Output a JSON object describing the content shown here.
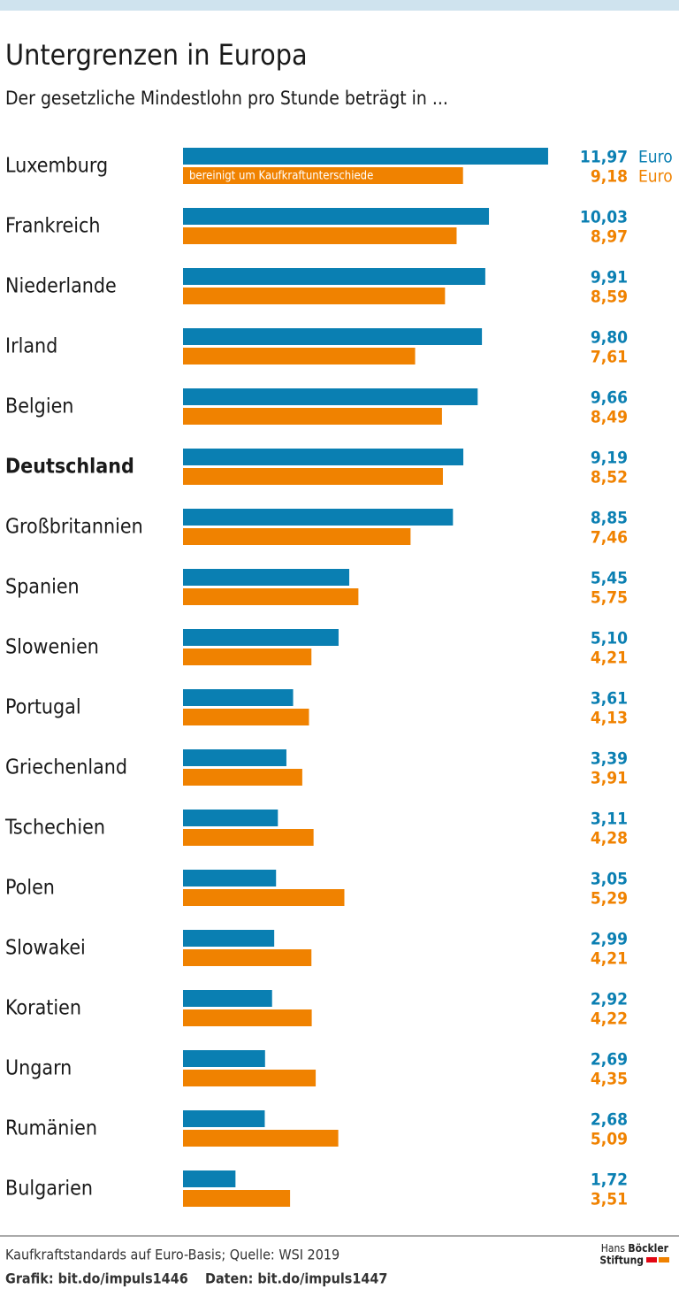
{
  "chart_data": {
    "type": "grouped-hbar",
    "title": "Untergrenzen in Europa",
    "subtitle": "Der gesetzliche Mindestlohn pro Stunde beträgt in ...",
    "categories": [
      "Luxemburg",
      "Frankreich",
      "Niederlande",
      "Irland",
      "Belgien",
      "Deutschland",
      "Großbritannien",
      "Spanien",
      "Slowenien",
      "Portugal",
      "Griechenland",
      "Tschechien",
      "Polen",
      "Slowakei",
      "Koratien",
      "Ungarn",
      "Rumänien",
      "Bulgarien"
    ],
    "highlight_index": 5,
    "xlim": [
      0,
      12
    ],
    "series": [
      {
        "color": "#0a7fb2",
        "unit": "Euro",
        "values": [
          11.97,
          10.03,
          9.91,
          9.8,
          9.66,
          9.19,
          8.85,
          5.45,
          5.1,
          3.61,
          3.39,
          3.11,
          3.05,
          2.99,
          2.92,
          2.69,
          2.68,
          1.72
        ],
        "value_labels": [
          "11,97",
          "10,03",
          "9,91",
          "9,80",
          "9,66",
          "9,19",
          "8,85",
          "5,45",
          "5,10",
          "3,61",
          "3,39",
          "3,11",
          "3,05",
          "2,99",
          "2,92",
          "2,69",
          "2,68",
          "1,72"
        ]
      },
      {
        "name": "bereinigt um Kaufkraftunterschiede",
        "color": "#f08200",
        "unit": "Euro",
        "values": [
          9.18,
          8.97,
          8.59,
          7.61,
          8.49,
          8.52,
          7.46,
          5.75,
          4.21,
          4.13,
          3.91,
          4.28,
          5.29,
          4.21,
          4.22,
          4.35,
          5.09,
          3.51
        ],
        "value_labels": [
          "9,18",
          "8,97",
          "8,59",
          "7,61",
          "8,49",
          "8,52",
          "7,46",
          "5,75",
          "4,21",
          "4,13",
          "3,91",
          "4,28",
          "5,29",
          "4,21",
          "4,22",
          "4,35",
          "5,09",
          "3,51"
        ]
      }
    ],
    "source": "Kaufkraftstandards auf Euro-Basis; Quelle: WSI 2019",
    "credit_graphic": "Grafik: bit.do/impuls1446",
    "credit_data": "Daten: bit.do/impuls1447",
    "logo": {
      "line1_light": "Hans",
      "line1_bold": "Böckler",
      "line2": "Stiftung"
    }
  }
}
